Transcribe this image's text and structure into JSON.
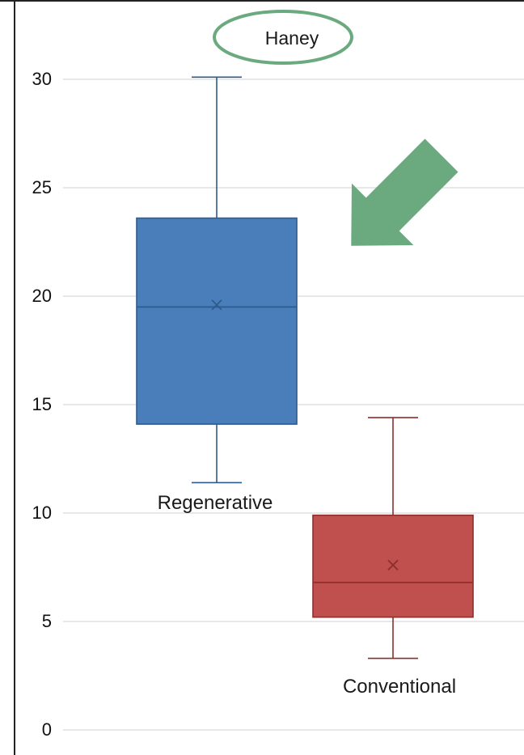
{
  "chart_data": {
    "type": "box",
    "title": "Haney",
    "xlabel": "",
    "ylabel": "",
    "ylim": [
      0,
      32
    ],
    "yticks": [
      0,
      5,
      10,
      15,
      20,
      25,
      30
    ],
    "grid": true,
    "legend": "none",
    "series": [
      {
        "name": "Regenerative",
        "color": "#4a7ebb",
        "edge_color": "#2f5a8c",
        "whisker_low": 11.4,
        "q1": 14.1,
        "median": 19.5,
        "mean": 19.6,
        "q3": 23.6,
        "whisker_high": 30.1
      },
      {
        "name": "Conventional",
        "color": "#c0504d",
        "edge_color": "#8c2f2c",
        "whisker_low": 3.3,
        "q1": 5.2,
        "median": 6.8,
        "mean": 7.6,
        "q3": 9.9,
        "whisker_high": 14.4
      }
    ],
    "annotations": [
      {
        "type": "ellipse",
        "target": "title",
        "color": "#6aaa7e"
      },
      {
        "type": "arrow",
        "direction": "down-left",
        "target": "Regenerative",
        "color": "#6aaa7e"
      }
    ]
  }
}
